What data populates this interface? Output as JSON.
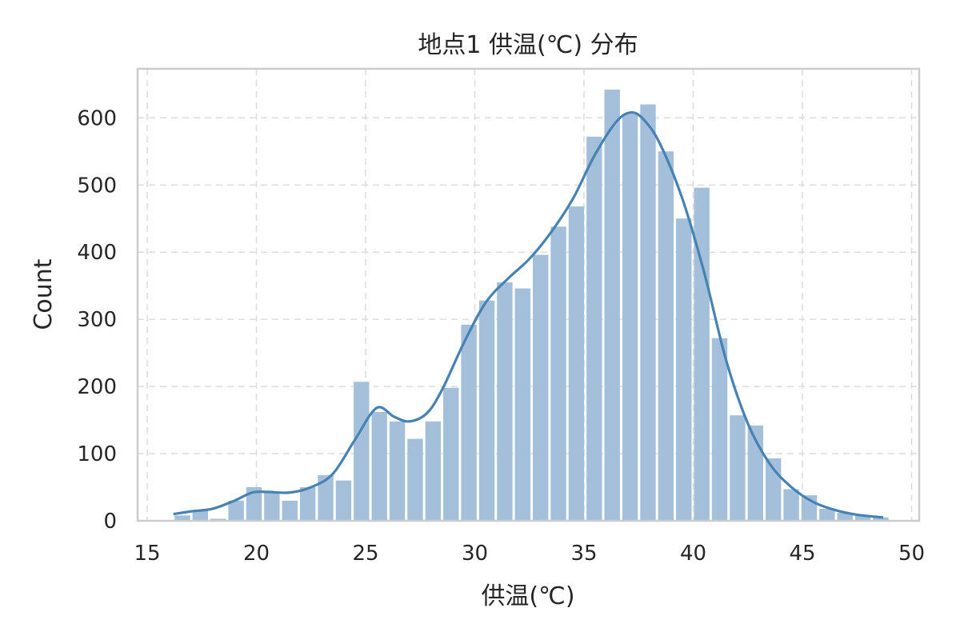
{
  "chart_data": {
    "type": "bar",
    "subtype": "histogram",
    "title": "地点1 供温(℃) 分布",
    "xlabel": "供温(℃)",
    "ylabel": "Count",
    "xlim": [
      15,
      50
    ],
    "ylim": [
      0,
      680
    ],
    "xticks": [
      15,
      20,
      25,
      30,
      35,
      40,
      45,
      50
    ],
    "yticks": [
      0,
      100,
      200,
      300,
      400,
      500,
      600
    ],
    "grid": true,
    "legend": false,
    "colors": {
      "bar": "#a3bfd9",
      "kde": "#4682b4"
    },
    "bin_start": 16.2,
    "bin_width": 0.82,
    "values": [
      8,
      15,
      3,
      30,
      50,
      42,
      30,
      50,
      68,
      60,
      207,
      162,
      148,
      122,
      148,
      198,
      292,
      328,
      355,
      346,
      396,
      438,
      468,
      572,
      642,
      606,
      620,
      550,
      450,
      496,
      272,
      157,
      142,
      93,
      47,
      38,
      18,
      12,
      8,
      5
    ],
    "kde": {
      "x": [
        16.2,
        17,
        18,
        19,
        19.8,
        20.5,
        21.5,
        22.5,
        23.5,
        24.5,
        25.5,
        26.3,
        27,
        27.8,
        28.5,
        29.5,
        30.5,
        31.5,
        32.5,
        33.5,
        34.5,
        35.5,
        36.5,
        37.2,
        37.8,
        38.5,
        39.5,
        40.5,
        41.5,
        42.5,
        43.5,
        44.5,
        45.5,
        46.5,
        47.5,
        48.7
      ],
      "y": [
        10,
        14,
        18,
        30,
        42,
        43,
        42,
        50,
        70,
        120,
        168,
        155,
        148,
        160,
        195,
        265,
        325,
        360,
        390,
        430,
        480,
        545,
        595,
        608,
        595,
        560,
        480,
        370,
        240,
        145,
        85,
        50,
        28,
        16,
        9,
        5
      ]
    }
  }
}
